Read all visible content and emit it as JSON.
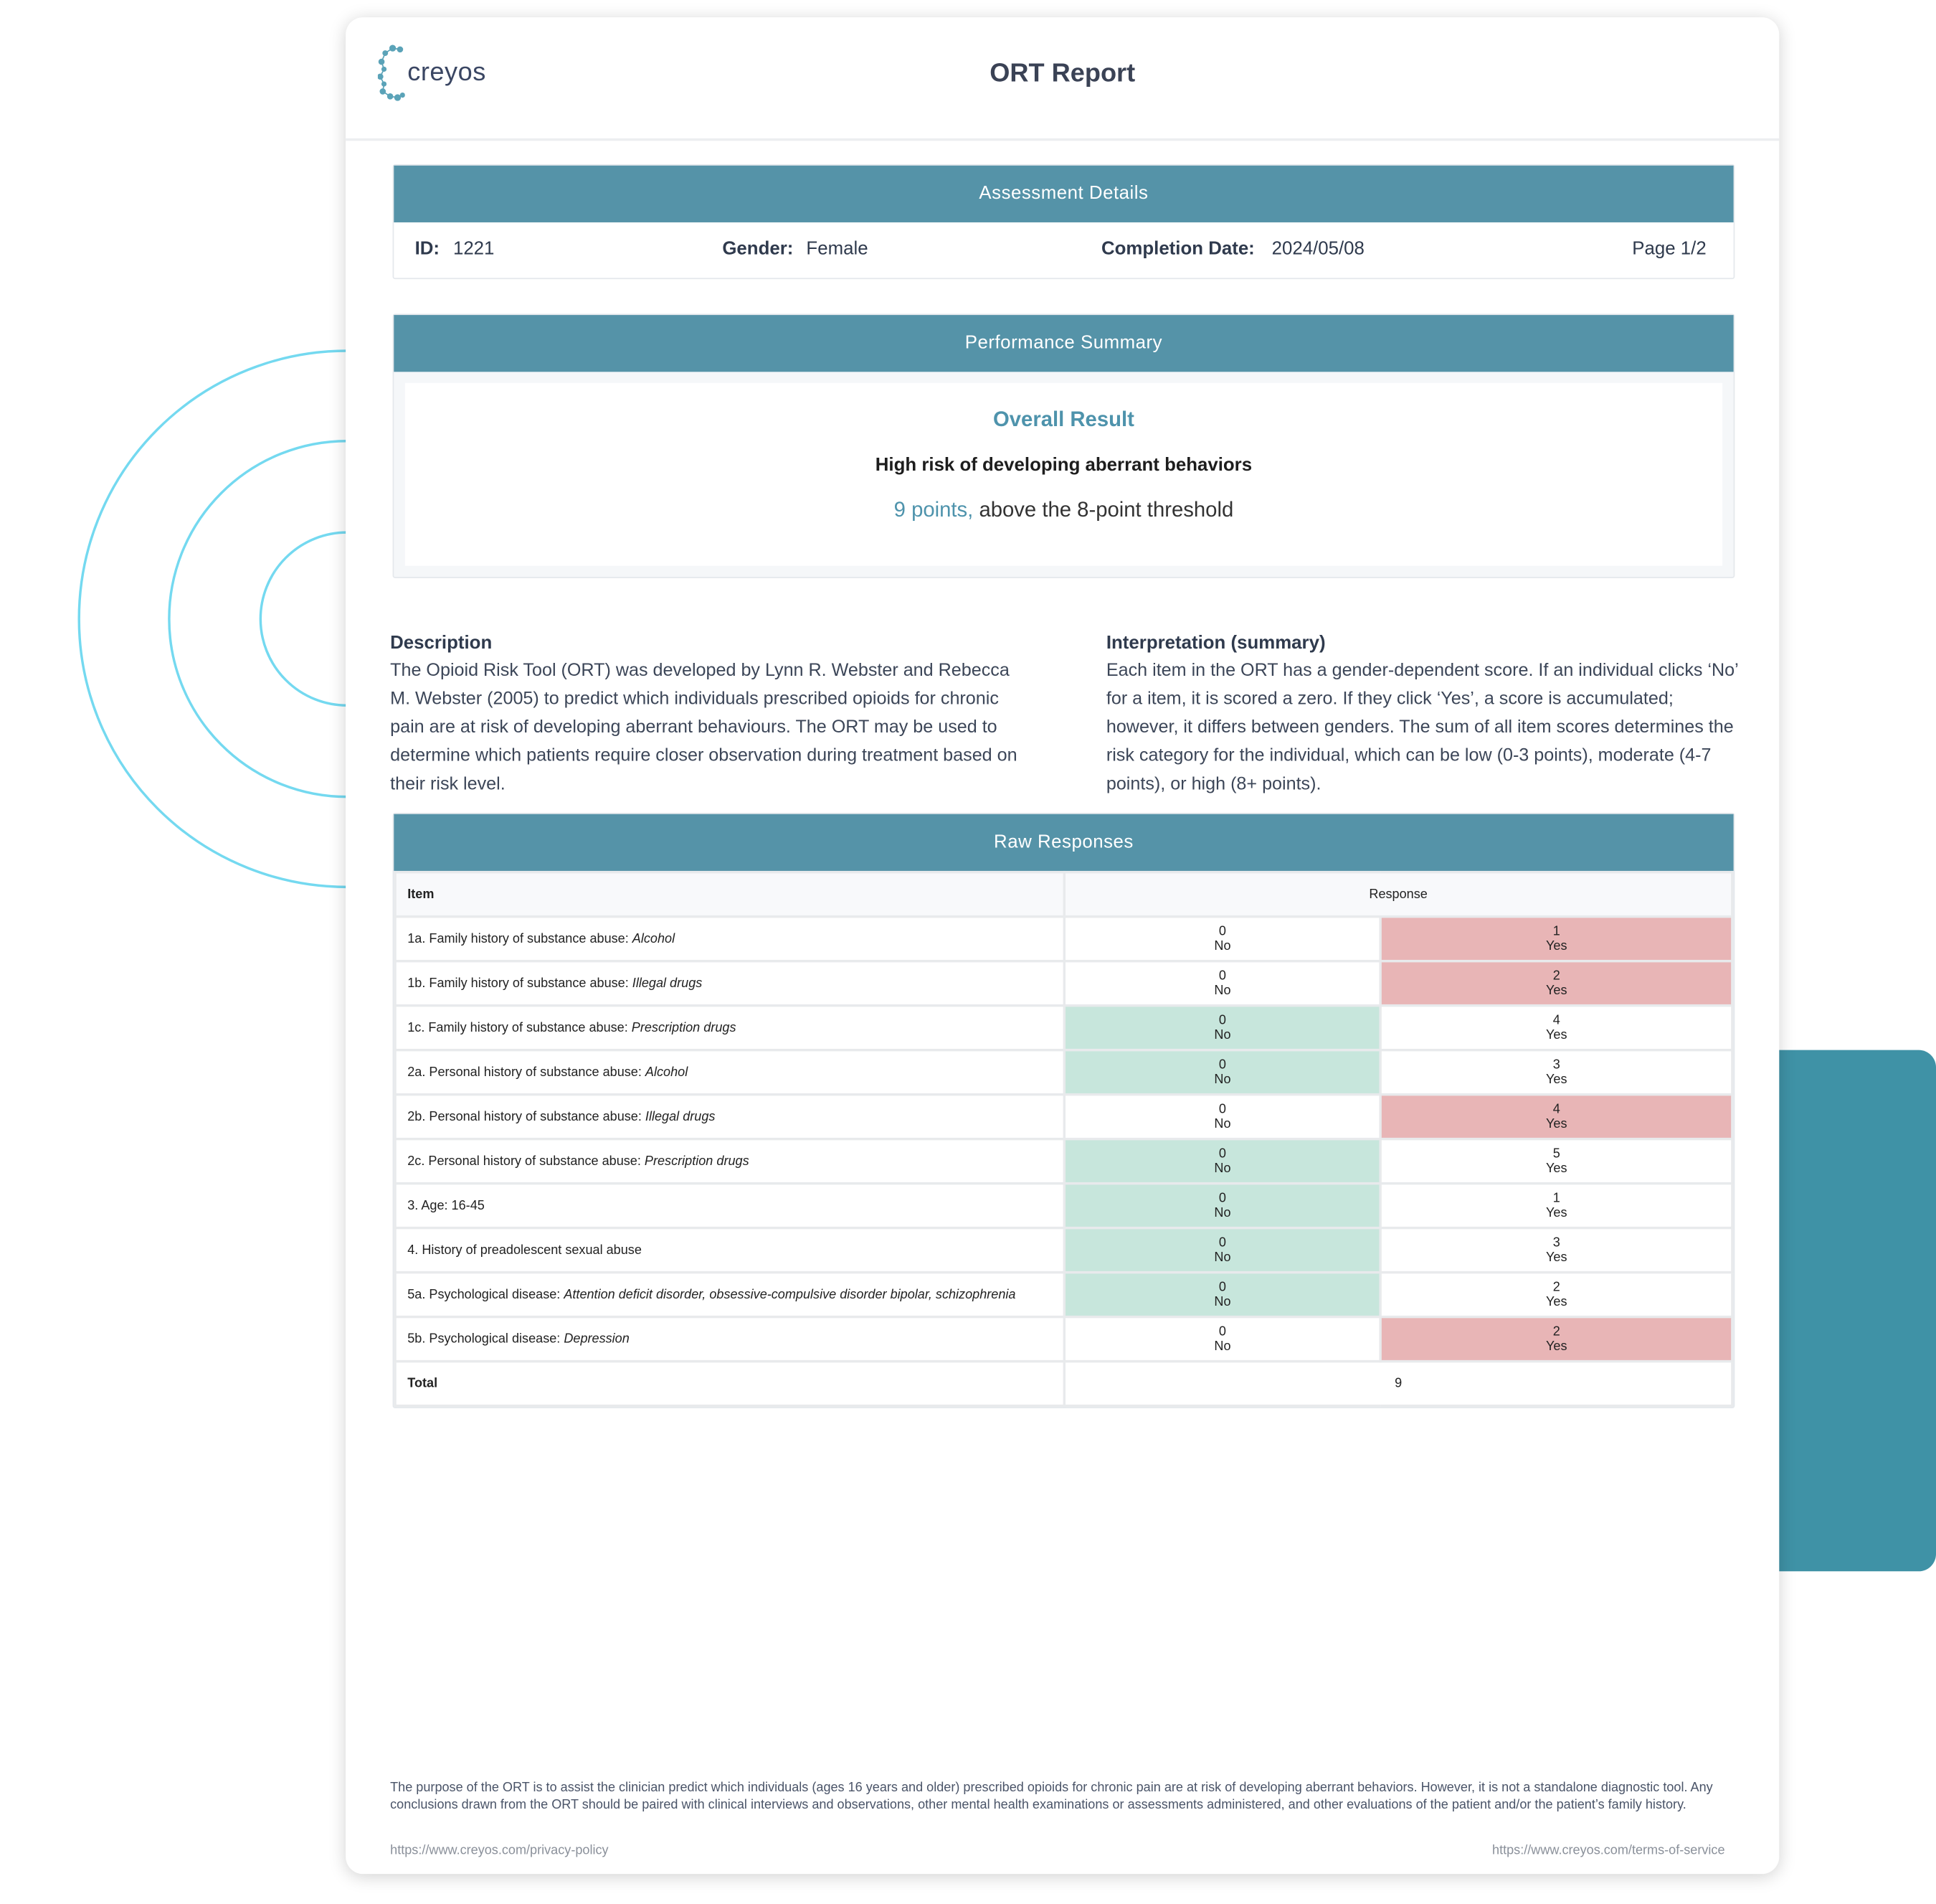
{
  "header": {
    "logo_text": "creyos",
    "title": "ORT Report"
  },
  "assessment": {
    "heading": "Assessment Details",
    "id_label": "ID:",
    "id": "1221",
    "gender_label": "Gender:",
    "gender": "Female",
    "date_label": "Completion Date:",
    "date": "2024/05/08",
    "page": "Page 1/2"
  },
  "summary": {
    "heading": "Performance Summary",
    "overall_label": "Overall Result",
    "risk": "High risk of developing aberrant behaviors",
    "points": "9 points,",
    "threshold": " above the 8-point threshold"
  },
  "description": {
    "heading": "Description",
    "text": "The Opioid Risk Tool (ORT) was developed by Lynn R. Webster and Rebecca M. Webster (2005) to predict which individuals prescribed opioids for chronic pain are at risk of developing aberrant behaviours. The ORT may be used to determine which patients require closer observation during treatment based on their risk level."
  },
  "interpretation": {
    "heading": "Interpretation (summary)",
    "text": "Each item in the ORT has a gender-dependent score. If an individual clicks ‘No’ for a item, it is scored a zero. If they click ‘Yes’, a score is accumulated; however, it differs between genders. The sum of all item scores determines the risk category for the individual, which can be low (0-3 points), moderate (4-7 points), or high (8+ points)."
  },
  "raw": {
    "heading": "Raw Responses",
    "col_item": "Item",
    "col_response": "Response",
    "rows": [
      {
        "item": "1a. Family history of substance abuse: ",
        "item_em": "Alcohol",
        "no": "0",
        "no_label": "No",
        "yes": "1",
        "yes_label": "Yes",
        "selected": "yes"
      },
      {
        "item": "1b. Family history of substance abuse: ",
        "item_em": "Illegal drugs",
        "no": "0",
        "no_label": "No",
        "yes": "2",
        "yes_label": "Yes",
        "selected": "yes"
      },
      {
        "item": "1c. Family history of substance abuse: ",
        "item_em": "Prescription drugs",
        "no": "0",
        "no_label": "No",
        "yes": "4",
        "yes_label": "Yes",
        "selected": "no"
      },
      {
        "item": "2a. Personal history of substance abuse: ",
        "item_em": "Alcohol",
        "no": "0",
        "no_label": "No",
        "yes": "3",
        "yes_label": "Yes",
        "selected": "no"
      },
      {
        "item": "2b. Personal history of substance abuse: ",
        "item_em": "Illegal drugs",
        "no": "0",
        "no_label": "No",
        "yes": "4",
        "yes_label": "Yes",
        "selected": "yes"
      },
      {
        "item": "2c. Personal history of substance abuse: ",
        "item_em": "Prescription drugs",
        "no": "0",
        "no_label": "No",
        "yes": "5",
        "yes_label": "Yes",
        "selected": "no"
      },
      {
        "item": "3. Age: 16-45",
        "item_em": "",
        "no": "0",
        "no_label": "No",
        "yes": "1",
        "yes_label": "Yes",
        "selected": "no"
      },
      {
        "item": "4. History of preadolescent sexual abuse",
        "item_em": "",
        "no": "0",
        "no_label": "No",
        "yes": "3",
        "yes_label": "Yes",
        "selected": "no"
      },
      {
        "item": "5a. Psychological disease: ",
        "item_em": "Attention deficit disorder, obsessive-compulsive disorder bipolar, schizophrenia",
        "no": "0",
        "no_label": "No",
        "yes": "2",
        "yes_label": "Yes",
        "selected": "no"
      },
      {
        "item": "5b. Psychological disease: ",
        "item_em": "Depression",
        "no": "0",
        "no_label": "No",
        "yes": "2",
        "yes_label": "Yes",
        "selected": "yes"
      }
    ],
    "total_label": "Total",
    "total": "9"
  },
  "footer": {
    "note": "The purpose of the ORT is to assist the clinician predict which individuals (ages 16 years and older) prescribed opioids for chronic pain are at risk of developing aberrant behaviors. However, it is not a standalone diagnostic tool. Any conclusions drawn from the ORT should be paired with clinical interviews and observations, other mental health examinations or assessments administered, and other evaluations of the patient and/or the patient’s family history.",
    "privacy": "https://www.creyos.com/privacy-policy",
    "terms": "https://www.creyos.com/terms-of-service"
  },
  "colors": {
    "accent": "#5593a8",
    "selected_yes": "#e8b5b6",
    "selected_no": "#c7e6dc",
    "decor": "#3f92a6"
  }
}
